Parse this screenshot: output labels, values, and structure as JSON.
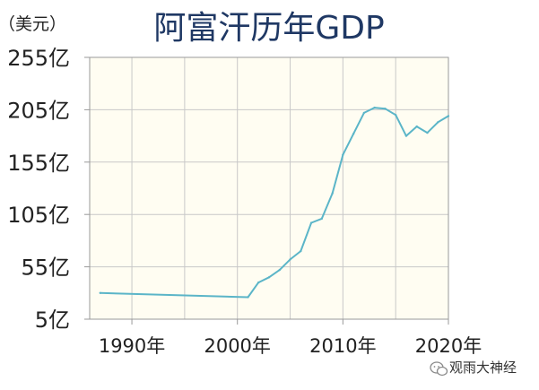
{
  "chart_data": {
    "type": "line",
    "title": "阿富汗历年GDP",
    "unit_label": "（美元）",
    "x": [
      1987,
      2001,
      2002,
      2003,
      2004,
      2005,
      2006,
      2007,
      2008,
      2009,
      2010,
      2011,
      2012,
      2013,
      2014,
      2015,
      2016,
      2017,
      2018,
      2019,
      2020
    ],
    "values": [
      30,
      26,
      40,
      45,
      52,
      62,
      70,
      97,
      101,
      125,
      162,
      182,
      202,
      207,
      206,
      200,
      180,
      189,
      183,
      193,
      199
    ],
    "xlim": [
      1986,
      2020
    ],
    "ylim": [
      5,
      255
    ],
    "yticks": [
      5,
      55,
      105,
      155,
      205,
      255
    ],
    "ytick_labels": [
      "5亿",
      "55亿",
      "105亿",
      "155亿",
      "205亿",
      "255亿"
    ],
    "xticks": [
      1990,
      2000,
      2010,
      2020
    ],
    "xtick_labels": [
      "1990年",
      "2000年",
      "2010年",
      "2020年"
    ],
    "grid": true,
    "line_color": "#5bb5c8",
    "plot_background": "#fffdf2",
    "grid_color": "#c8c8c8"
  },
  "watermark": {
    "text": "观雨大神经",
    "icon": "wechat-icon"
  }
}
